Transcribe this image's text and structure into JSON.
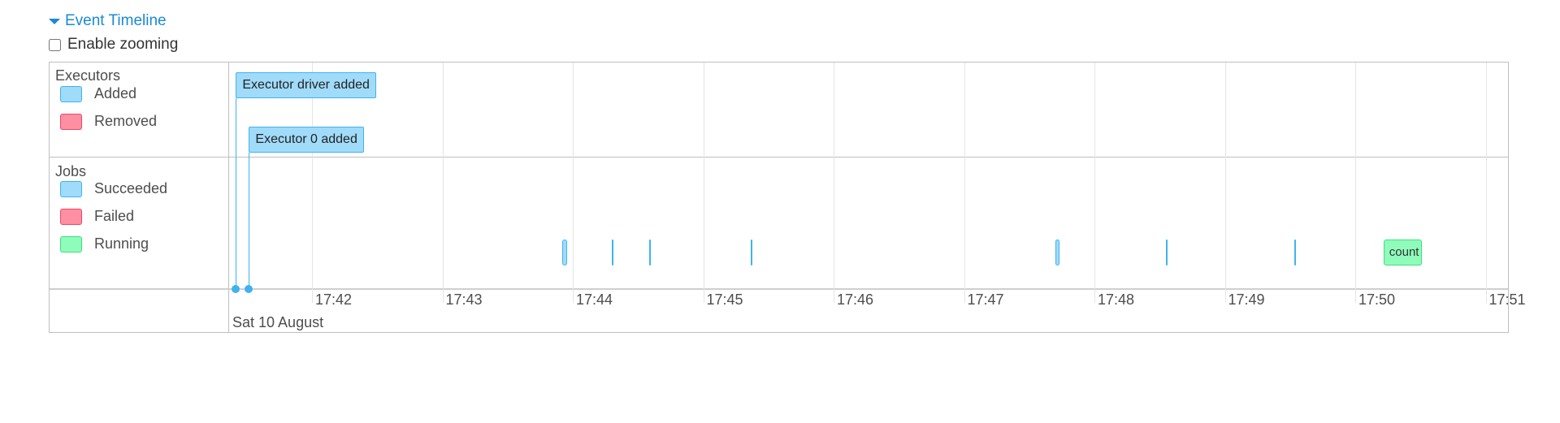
{
  "header": {
    "title": "Event Timeline",
    "zoom_label": "Enable zooming",
    "zoom_checked": false
  },
  "groups": {
    "executors": {
      "label": "Executors",
      "legend": [
        {
          "label": "Added",
          "color": "#a0dbfa",
          "border": "#3eb3f0"
        },
        {
          "label": "Removed",
          "color": "#ff8fa3",
          "border": "#f04766"
        }
      ]
    },
    "jobs": {
      "label": "Jobs",
      "legend": [
        {
          "label": "Succeeded",
          "color": "#a0dbfa",
          "border": "#3eb3f0"
        },
        {
          "label": "Failed",
          "color": "#ff8fa3",
          "border": "#f04766"
        },
        {
          "label": "Running",
          "color": "#8ffcbc",
          "border": "#3ee07a"
        }
      ]
    }
  },
  "axis": {
    "ticks": [
      "17:42",
      "17:43",
      "17:44",
      "17:45",
      "17:46",
      "17:47",
      "17:48",
      "17:49",
      "17:50",
      "17:51"
    ],
    "date": "Sat 10 August"
  },
  "executor_events": [
    {
      "label": "Executor driver added",
      "time": "17:41:25"
    },
    {
      "label": "Executor 0 added",
      "time": "17:41:31"
    }
  ],
  "jobs": [
    {
      "status": "succeeded",
      "time": "17:43:55",
      "label": ""
    },
    {
      "status": "succeeded",
      "time": "17:44:18",
      "label": ""
    },
    {
      "status": "succeeded",
      "time": "17:44:35",
      "label": ""
    },
    {
      "status": "succeeded",
      "time": "17:45:22",
      "label": ""
    },
    {
      "status": "succeeded",
      "time": "17:47:42",
      "label": ""
    },
    {
      "status": "succeeded",
      "time": "17:48:33",
      "label": ""
    },
    {
      "status": "succeeded",
      "time": "17:49:32",
      "label": ""
    },
    {
      "status": "running",
      "time": "17:50:13",
      "label": "count"
    }
  ]
}
